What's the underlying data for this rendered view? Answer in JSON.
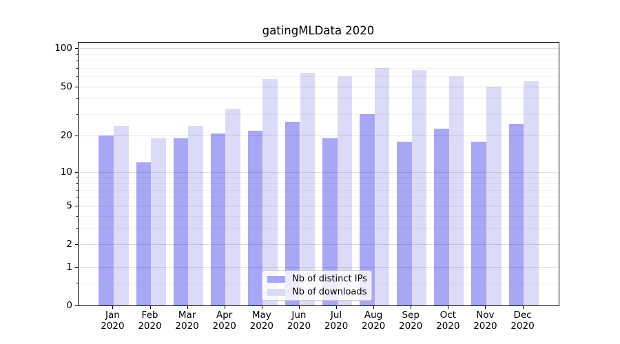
{
  "title": "gatingMLData 2020",
  "chart_data": {
    "type": "bar",
    "title": "gatingMLData 2020",
    "categories": [
      "Jan",
      "Feb",
      "Mar",
      "Apr",
      "May",
      "Jun",
      "Jul",
      "Aug",
      "Sep",
      "Oct",
      "Nov",
      "Dec"
    ],
    "year": "2020",
    "series": [
      {
        "name": "Nb of distinct IPs",
        "color": "#a7a7f5",
        "values": [
          20,
          12,
          19,
          21,
          22,
          26,
          19,
          30,
          18,
          23,
          18,
          25
        ]
      },
      {
        "name": "Nb of downloads",
        "color": "#dbdbf8",
        "values": [
          24,
          19,
          24,
          33,
          57,
          64,
          60,
          70,
          67,
          60,
          50,
          55
        ]
      }
    ],
    "yscale": "log1p",
    "ylim": [
      0,
      111
    ],
    "yticks": [
      0,
      1,
      2,
      5,
      10,
      20,
      50,
      100
    ],
    "yticks_minor": [
      0.5,
      3,
      4,
      6,
      7,
      8,
      9,
      30,
      40,
      60,
      70,
      80,
      90
    ],
    "grid": true,
    "legend_position": "lower center"
  }
}
